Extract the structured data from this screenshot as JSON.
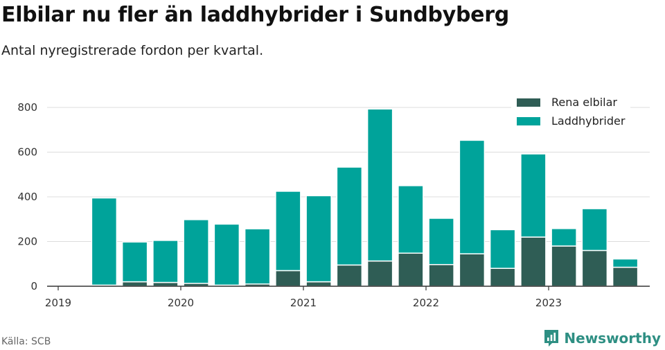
{
  "chart_data": {
    "type": "bar",
    "stacked": true,
    "title": "Elbilar nu fler än laddhybrider i Sundbyberg",
    "subtitle": "Antal nyregistrerade fordon per kvartal.",
    "xlabel": "",
    "ylabel": "",
    "ylim": [
      0,
      800
    ],
    "yticks": [
      0,
      200,
      400,
      600,
      800
    ],
    "xtick_labels": [
      "2019",
      "2020",
      "2021",
      "2022",
      "2023"
    ],
    "categories": [
      "2019 Q2",
      "2019 Q3",
      "2019 Q4",
      "2020 Q1",
      "2020 Q2",
      "2020 Q3",
      "2020 Q4",
      "2021 Q1",
      "2021 Q2",
      "2021 Q3",
      "2021 Q4",
      "2022 Q1",
      "2022 Q2",
      "2022 Q3",
      "2022 Q4",
      "2023 Q1",
      "2023 Q2",
      "2023 Q3"
    ],
    "series": [
      {
        "name": "Rena elbilar",
        "color": "#2f5d55",
        "values": [
          5,
          20,
          17,
          13,
          5,
          10,
          70,
          20,
          95,
          113,
          148,
          97,
          145,
          80,
          220,
          180,
          160,
          85
        ]
      },
      {
        "name": "Laddhybrider",
        "color": "#00a39a",
        "values": [
          390,
          178,
          188,
          285,
          273,
          247,
          355,
          385,
          438,
          680,
          302,
          207,
          508,
          173,
          372,
          78,
          187,
          37
        ]
      }
    ],
    "grid": true,
    "legend": "top-right"
  },
  "footer": {
    "source": "Källa: SCB",
    "brand": "Newsworthy"
  }
}
